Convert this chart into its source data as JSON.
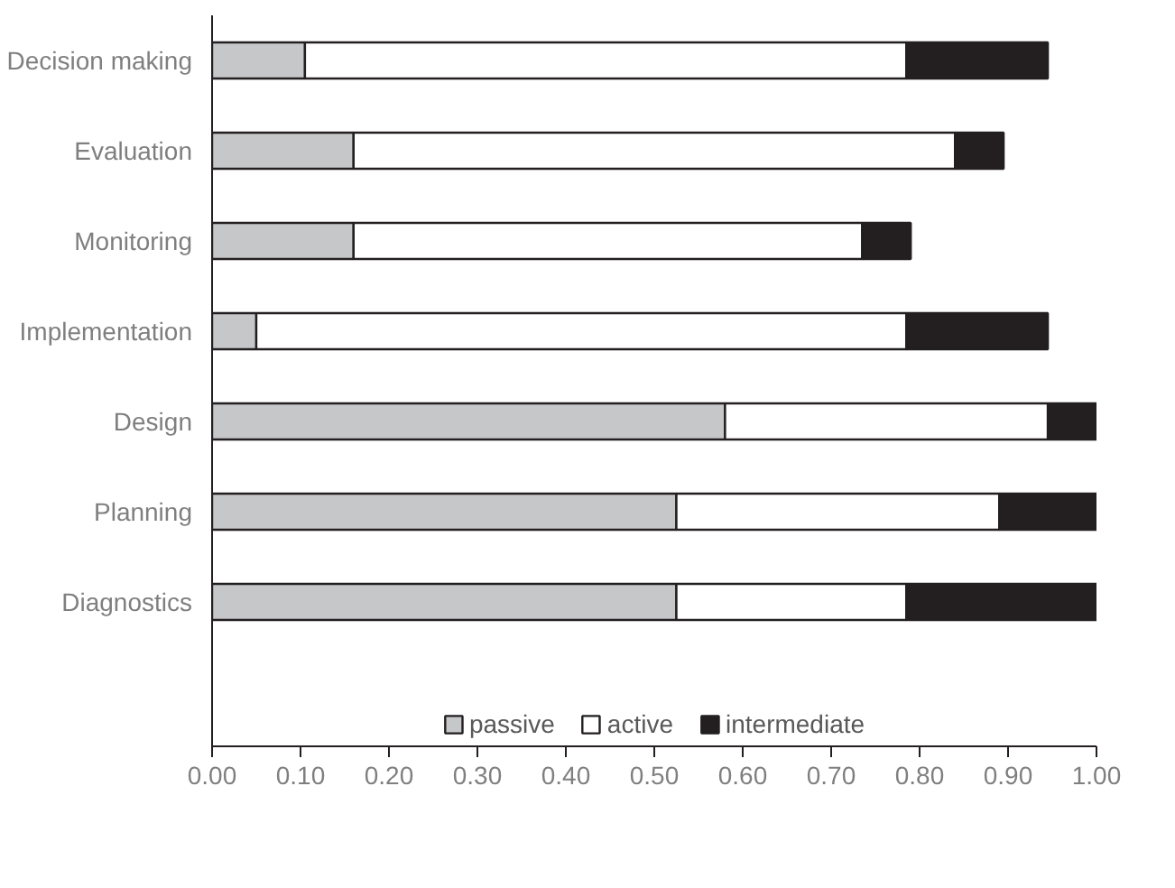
{
  "chart_data": {
    "type": "bar",
    "orientation": "horizontal",
    "stacked": true,
    "categories": [
      "Decision making",
      "Evaluation",
      "Monitoring",
      "Implementation",
      "Design",
      "Planning",
      "Diagnostics"
    ],
    "series": [
      {
        "name": "passive",
        "color": "#c6c7c9",
        "values": [
          0.105,
          0.16,
          0.16,
          0.05,
          0.58,
          0.525,
          0.525
        ]
      },
      {
        "name": "active",
        "color": "#ffffff",
        "values": [
          0.68,
          0.68,
          0.575,
          0.735,
          0.365,
          0.365,
          0.26
        ]
      },
      {
        "name": "intermediate",
        "color": "#231f20",
        "values": [
          0.16,
          0.055,
          0.055,
          0.16,
          0.055,
          0.11,
          0.215
        ]
      }
    ],
    "xlim": [
      0,
      1
    ],
    "xticks": [
      {
        "value": 0,
        "label": "0.00"
      },
      {
        "value": 0.1,
        "label": "0.10"
      },
      {
        "value": 0.2,
        "label": "0.20"
      },
      {
        "value": 0.3,
        "label": "0.30"
      },
      {
        "value": 0.4,
        "label": "0.40"
      },
      {
        "value": 0.5,
        "label": "0.50"
      },
      {
        "value": 0.6,
        "label": "0.60"
      },
      {
        "value": 0.7,
        "label": "0.70"
      },
      {
        "value": 0.8,
        "label": "0.80"
      },
      {
        "value": 0.9,
        "label": "0.90"
      },
      {
        "value": 1,
        "label": "1.00"
      }
    ],
    "grid": false,
    "legend": "bottom"
  }
}
